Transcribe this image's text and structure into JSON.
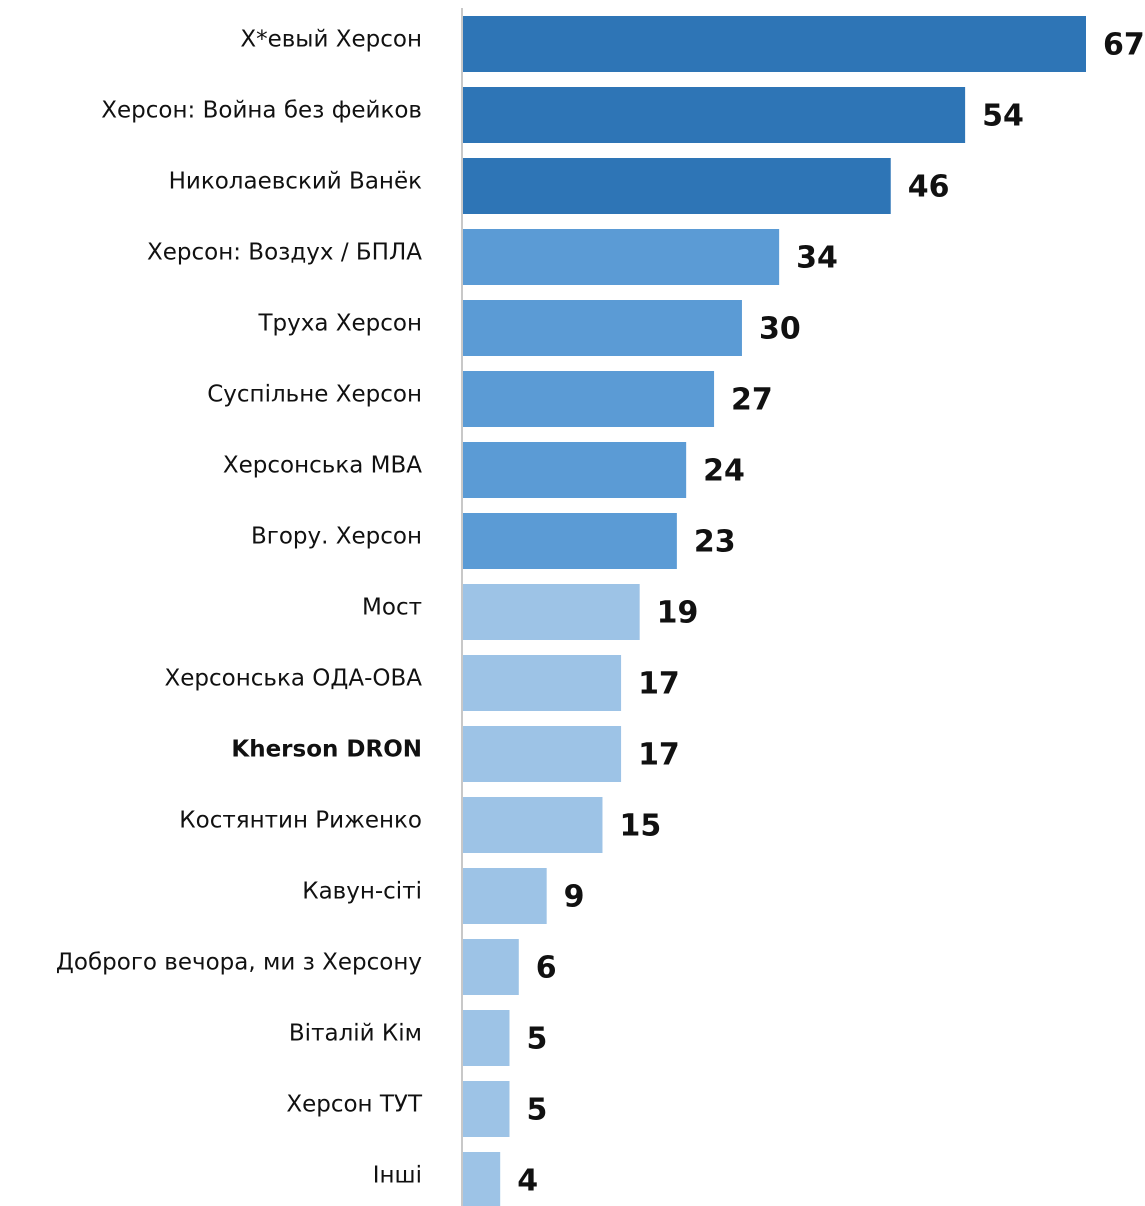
{
  "chart_data": {
    "type": "hbar",
    "categories": [
      "X*евый Херсон",
      "Херсон: Война без фейков",
      "Николаевский Ванёк",
      "Херсон: Воздух / БПЛА",
      "Труха Херсон",
      "Суспільне Херсон",
      "Херсонська МВА",
      "Вгору. Херсон",
      "Мост",
      "Херсонська ОДА-ОВА",
      "Kherson DRON",
      "Костянтин Риженко",
      "Кавун-сіті",
      "Доброго вечора, ми з Херсону",
      "Віталій Кім",
      "Херсон ТУТ",
      "Інші"
    ],
    "values": [
      67,
      54,
      46,
      34,
      30,
      27,
      24,
      23,
      19,
      17,
      17,
      15,
      9,
      6,
      5,
      5,
      4
    ],
    "colors": [
      "#2e75b6",
      "#2e75b6",
      "#2e75b6",
      "#5b9bd5",
      "#5b9bd5",
      "#5b9bd5",
      "#5b9bd5",
      "#5b9bd5",
      "#9dc3e6",
      "#9dc3e6",
      "#9dc3e6",
      "#9dc3e6",
      "#9dc3e6",
      "#9dc3e6",
      "#9dc3e6",
      "#9dc3e6",
      "#9dc3e6"
    ],
    "bold_label_index": 10
  }
}
